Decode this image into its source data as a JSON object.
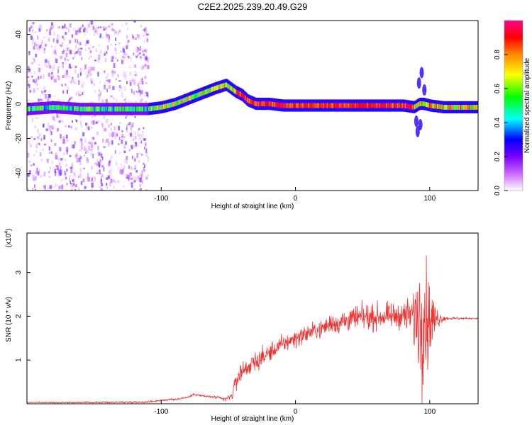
{
  "title": "C2E2.2025.239.20.49.G29",
  "chart_data": [
    {
      "type": "heatmap",
      "xlabel": "Height of straight line (km)",
      "ylabel": "Frequency (Hz)",
      "xlim": [
        -200,
        136
      ],
      "ylim": [
        -50,
        48
      ],
      "xticks": [
        -100,
        0,
        100
      ],
      "yticks": [
        -40,
        -20,
        0,
        20,
        40
      ],
      "colorbar": {
        "label": "Normalized spectral amplitude",
        "range": [
          0,
          1
        ],
        "ticks": [
          0.0,
          0.2,
          0.4,
          0.6,
          0.8
        ],
        "tick_labels": [
          "0.0",
          "0.2",
          "0.4",
          "0.6",
          "0.8"
        ],
        "colormap": [
          "#ffffff",
          "#cc66ff",
          "#7700ff",
          "#0000ff",
          "#00ffff",
          "#00ff00",
          "#ffff00",
          "#ff8800",
          "#ff0000",
          "#ff0088"
        ]
      },
      "ridge": {
        "x": [
          -200,
          -180,
          -160,
          -140,
          -120,
          -110,
          -100,
          -90,
          -80,
          -70,
          -60,
          -52,
          -45,
          -40,
          -36,
          -30,
          -20,
          -10,
          0,
          20,
          40,
          60,
          80,
          88,
          92,
          95,
          100,
          110,
          120,
          136
        ],
        "y": [
          -3,
          -2,
          -3,
          -3,
          -3,
          -3,
          -2,
          0,
          3,
          6,
          9,
          11,
          7,
          5,
          2,
          0,
          0,
          -1,
          -1,
          -1,
          -1,
          -1,
          -1,
          -2,
          0,
          0,
          -1,
          -2,
          -2,
          -2
        ]
      },
      "noise_region_x": [
        -200,
        -110
      ]
    },
    {
      "type": "line",
      "xlabel": "Height of straight line (km)",
      "ylabel": "SNR (10 * v/v)",
      "y_exponent_label": "(x10",
      "y_exponent": "4",
      "y_exponent_close": ")",
      "xlim": [
        -200,
        136
      ],
      "ylim": [
        0,
        3.9
      ],
      "xticks": [
        -100,
        0,
        100
      ],
      "yticks": [
        1,
        2,
        3
      ],
      "series": [
        {
          "color": "#ee3333",
          "envelope": {
            "x": [
              -200,
              -150,
              -110,
              -100,
              -90,
              -80,
              -75,
              -70,
              -60,
              -52,
              -47,
              -44,
              -40,
              -35,
              -30,
              -20,
              -10,
              0,
              10,
              20,
              28,
              30,
              40,
              50,
              60,
              70,
              80,
              86,
              90,
              94,
              97,
              100,
              103,
              107,
              112,
              120,
              136
            ],
            "y": [
              0.03,
              0.03,
              0.04,
              0.08,
              0.1,
              0.15,
              0.22,
              0.18,
              0.15,
              0.1,
              0.2,
              0.55,
              0.75,
              0.85,
              0.95,
              1.15,
              1.35,
              1.5,
              1.62,
              1.72,
              1.88,
              1.82,
              1.92,
              1.97,
              1.98,
              2.0,
              2.02,
              2.0,
              2.0,
              2.0,
              1.98,
              1.9,
              1.92,
              1.95,
              1.95,
              1.95,
              1.95
            ]
          },
          "noise": {
            "x": [
              -200,
              -60,
              -48,
              -44,
              -30,
              -10,
              20,
              40,
              80,
              86,
              92,
              95,
              100,
              104,
              108,
              112,
              136
            ],
            "y": [
              0.01,
              0.04,
              0.08,
              0.3,
              0.28,
              0.25,
              0.25,
              0.35,
              0.35,
              0.6,
              1.6,
              1.8,
              1.2,
              0.5,
              0.15,
              0.05,
              0.02
            ]
          }
        }
      ]
    }
  ]
}
